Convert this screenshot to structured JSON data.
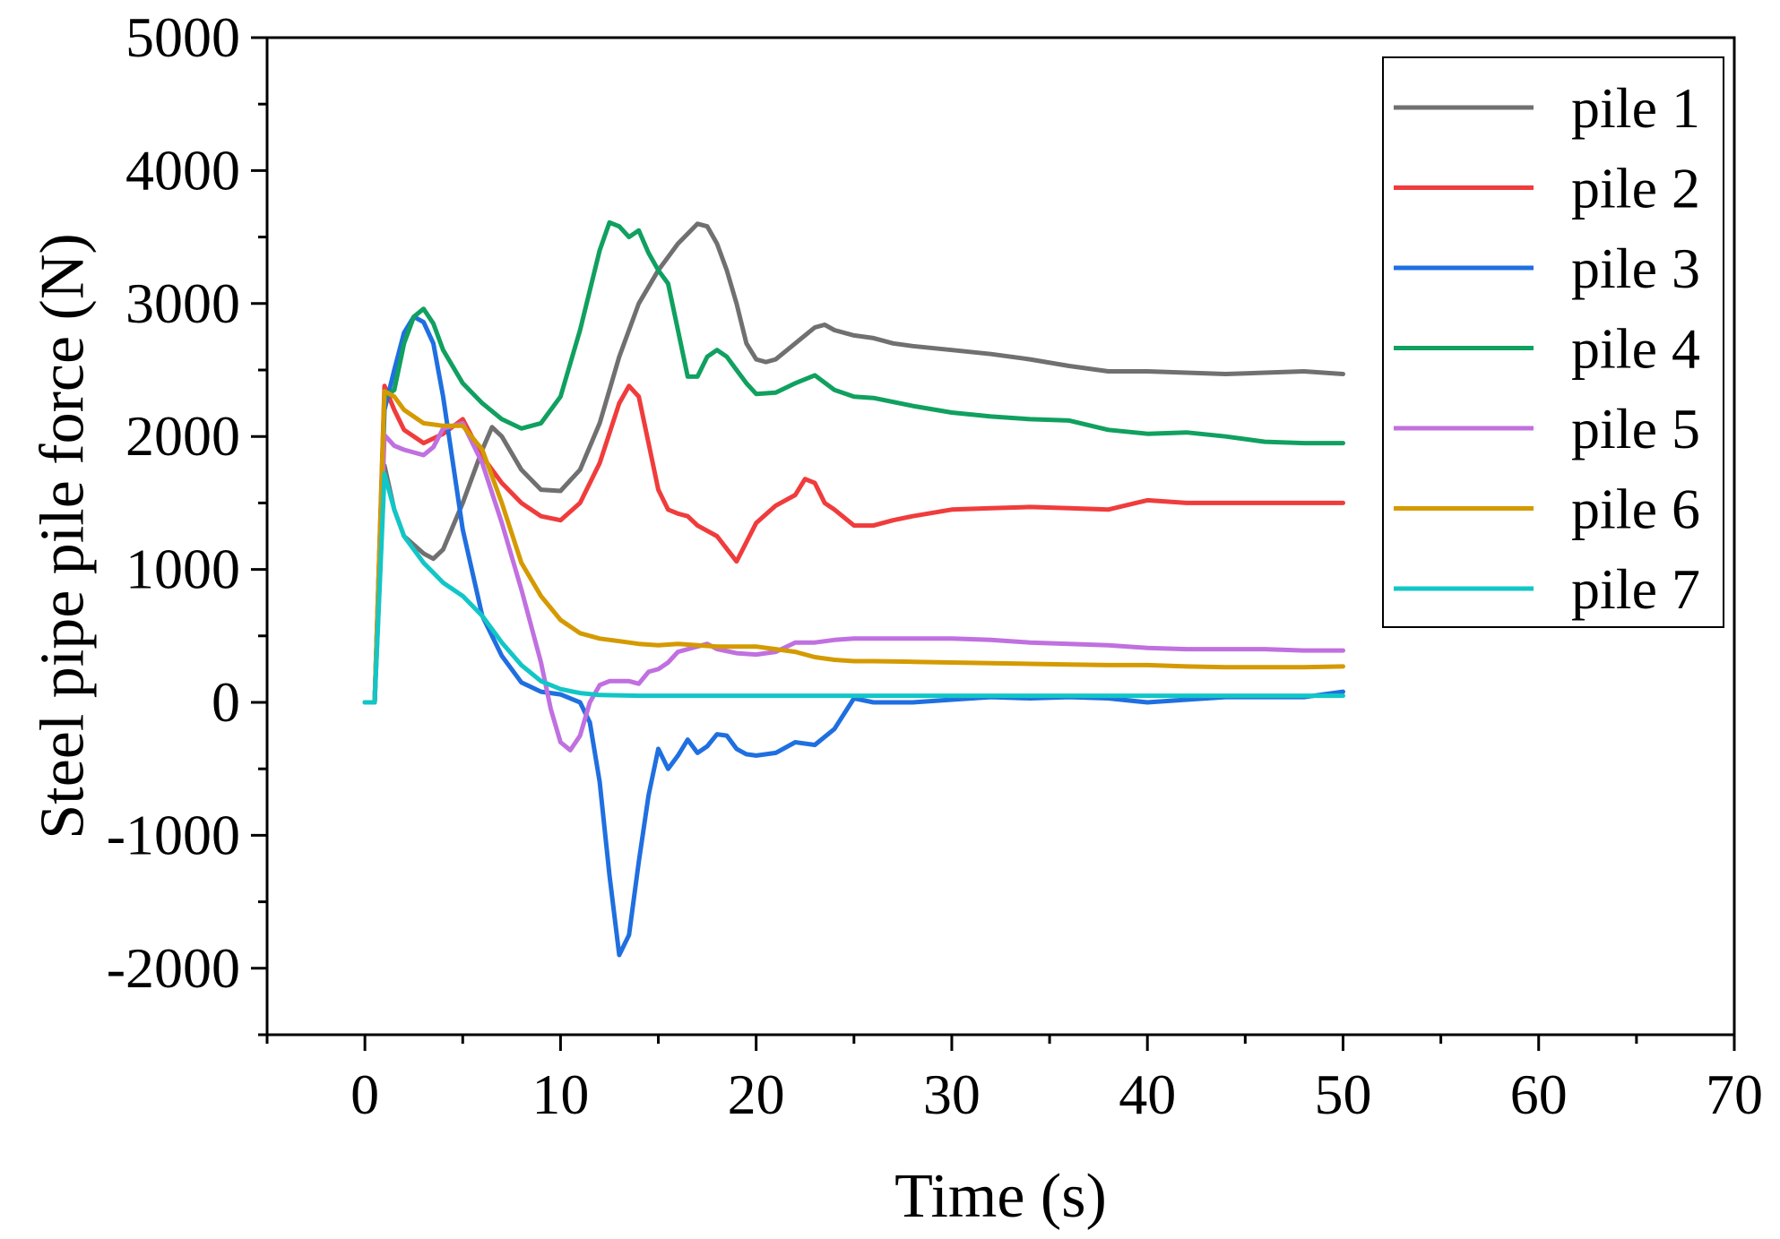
{
  "chart_data": {
    "type": "line",
    "title": "",
    "xlabel": "Time (s)",
    "ylabel": "Steel pipe pile force (N)",
    "xlim": [
      -5,
      70
    ],
    "ylim": [
      -2500,
      5000
    ],
    "xticks": [
      0,
      10,
      20,
      30,
      40,
      50,
      60,
      70
    ],
    "xtick_labels": [
      "0",
      "10",
      "20",
      "30",
      "40",
      "50",
      "60",
      "70"
    ],
    "yticks": [
      -2000,
      -1000,
      0,
      1000,
      2000,
      3000,
      4000,
      5000
    ],
    "ytick_labels": [
      "-2000",
      "-1000",
      "0",
      "1000",
      "2000",
      "3000",
      "4000",
      "5000"
    ],
    "grid": false,
    "legend_position": "top-right",
    "series": [
      {
        "name": "pile 1",
        "color": "#707070",
        "x": [
          0,
          0.5,
          1.0,
          1.5,
          2.0,
          3.0,
          3.5,
          4.0,
          5.0,
          6.0,
          6.5,
          7.0,
          8.0,
          9.0,
          10.0,
          11.0,
          12.0,
          13.0,
          14.0,
          15.0,
          16.0,
          17.0,
          17.5,
          18.0,
          18.5,
          19.0,
          19.5,
          20.0,
          20.5,
          21.0,
          22.0,
          23.0,
          23.5,
          24.0,
          25.0,
          26.0,
          27.0,
          28.0,
          30.0,
          32.0,
          34.0,
          36.0,
          38.0,
          40.0,
          42.0,
          44.0,
          46.0,
          48.0,
          50.0
        ],
        "y": [
          0,
          0,
          1780,
          1450,
          1250,
          1120,
          1080,
          1150,
          1500,
          1900,
          2070,
          2000,
          1750,
          1600,
          1590,
          1750,
          2100,
          2600,
          3000,
          3250,
          3450,
          3600,
          3580,
          3450,
          3250,
          3000,
          2700,
          2580,
          2560,
          2580,
          2700,
          2820,
          2840,
          2800,
          2760,
          2740,
          2700,
          2680,
          2650,
          2620,
          2580,
          2530,
          2490,
          2490,
          2480,
          2470,
          2480,
          2490,
          2470
        ]
      },
      {
        "name": "pile 2",
        "color": "#f03c3c",
        "x": [
          0,
          0.5,
          1.0,
          1.5,
          2.0,
          3.0,
          4.0,
          5.0,
          6.0,
          7.0,
          8.0,
          9.0,
          10.0,
          11.0,
          12.0,
          13.0,
          13.5,
          14.0,
          14.5,
          15.0,
          15.5,
          16.0,
          16.5,
          17.0,
          18.0,
          19.0,
          20.0,
          21.0,
          22.0,
          22.5,
          23.0,
          23.5,
          24.0,
          25.0,
          26.0,
          27.0,
          28.0,
          30.0,
          32.0,
          34.0,
          36.0,
          38.0,
          40.0,
          42.0,
          44.0,
          46.0,
          48.0,
          50.0
        ],
        "y": [
          0,
          0,
          2380,
          2200,
          2050,
          1950,
          2020,
          2130,
          1850,
          1650,
          1500,
          1400,
          1370,
          1500,
          1800,
          2250,
          2380,
          2300,
          1950,
          1600,
          1450,
          1420,
          1400,
          1330,
          1250,
          1060,
          1350,
          1480,
          1560,
          1680,
          1650,
          1500,
          1450,
          1330,
          1330,
          1370,
          1400,
          1450,
          1460,
          1470,
          1460,
          1450,
          1520,
          1500,
          1500,
          1500,
          1500,
          1500
        ]
      },
      {
        "name": "pile 3",
        "color": "#1f6fe0",
        "x": [
          0,
          0.5,
          1.0,
          1.5,
          2.0,
          2.5,
          3.0,
          3.5,
          4.0,
          5.0,
          6.0,
          7.0,
          8.0,
          9.0,
          10.0,
          11.0,
          11.5,
          12.0,
          12.5,
          13.0,
          13.5,
          14.0,
          14.5,
          15.0,
          15.5,
          16.0,
          16.5,
          17.0,
          17.5,
          18.0,
          18.5,
          19.0,
          19.5,
          20.0,
          21.0,
          22.0,
          23.0,
          24.0,
          25.0,
          26.0,
          28.0,
          30.0,
          32.0,
          34.0,
          36.0,
          38.0,
          40.0,
          42.0,
          44.0,
          46.0,
          48.0,
          50.0
        ],
        "y": [
          0,
          0,
          2200,
          2500,
          2780,
          2900,
          2860,
          2700,
          2300,
          1300,
          650,
          350,
          150,
          80,
          60,
          0,
          -150,
          -600,
          -1300,
          -1900,
          -1750,
          -1200,
          -700,
          -350,
          -500,
          -400,
          -280,
          -380,
          -330,
          -240,
          -250,
          -350,
          -390,
          -400,
          -380,
          -300,
          -320,
          -200,
          30,
          0,
          0,
          20,
          40,
          30,
          40,
          30,
          0,
          20,
          40,
          40,
          40,
          80
        ]
      },
      {
        "name": "pile 4",
        "color": "#10a060",
        "x": [
          0,
          0.5,
          1.0,
          1.5,
          2.0,
          2.5,
          3.0,
          3.5,
          4.0,
          5.0,
          6.0,
          7.0,
          8.0,
          9.0,
          10.0,
          11.0,
          12.0,
          12.5,
          13.0,
          13.5,
          14.0,
          14.5,
          15.0,
          15.5,
          16.0,
          16.5,
          17.0,
          17.5,
          18.0,
          18.5,
          19.0,
          19.5,
          20.0,
          21.0,
          22.0,
          23.0,
          24.0,
          25.0,
          26.0,
          28.0,
          30.0,
          32.0,
          34.0,
          36.0,
          38.0,
          40.0,
          42.0,
          44.0,
          46.0,
          48.0,
          50.0
        ],
        "y": [
          0,
          0,
          2300,
          2350,
          2700,
          2900,
          2960,
          2850,
          2650,
          2400,
          2250,
          2130,
          2060,
          2100,
          2300,
          2800,
          3400,
          3610,
          3580,
          3500,
          3550,
          3380,
          3250,
          3150,
          2800,
          2450,
          2450,
          2600,
          2650,
          2600,
          2500,
          2400,
          2320,
          2330,
          2400,
          2460,
          2350,
          2300,
          2290,
          2230,
          2180,
          2150,
          2130,
          2120,
          2050,
          2020,
          2030,
          2000,
          1960,
          1950,
          1950
        ]
      },
      {
        "name": "pile 5",
        "color": "#c070e0",
        "x": [
          0,
          0.5,
          1.0,
          1.5,
          2.0,
          2.5,
          3.0,
          3.5,
          4.0,
          5.0,
          6.0,
          7.0,
          8.0,
          9.0,
          9.5,
          10.0,
          10.5,
          11.0,
          11.5,
          12.0,
          12.5,
          13.0,
          13.5,
          14.0,
          14.5,
          15.0,
          15.5,
          16.0,
          16.5,
          17.0,
          17.5,
          18.0,
          19.0,
          20.0,
          21.0,
          22.0,
          23.0,
          24.0,
          25.0,
          26.0,
          28.0,
          30.0,
          32.0,
          34.0,
          36.0,
          38.0,
          40.0,
          42.0,
          44.0,
          46.0,
          48.0,
          50.0
        ],
        "y": [
          0,
          0,
          2010,
          1930,
          1900,
          1880,
          1860,
          1920,
          2060,
          2100,
          1800,
          1350,
          850,
          300,
          -50,
          -300,
          -360,
          -250,
          0,
          130,
          160,
          160,
          160,
          140,
          230,
          250,
          300,
          380,
          400,
          420,
          440,
          400,
          370,
          360,
          380,
          450,
          450,
          470,
          480,
          480,
          480,
          480,
          470,
          450,
          440,
          430,
          410,
          400,
          400,
          400,
          390,
          390
        ]
      },
      {
        "name": "pile 6",
        "color": "#d49a00",
        "x": [
          0,
          0.5,
          1.0,
          1.5,
          2.0,
          3.0,
          4.0,
          5.0,
          6.0,
          7.0,
          8.0,
          9.0,
          10.0,
          11.0,
          12.0,
          13.0,
          14.0,
          15.0,
          16.0,
          17.0,
          18.0,
          19.0,
          20.0,
          21.0,
          22.0,
          23.0,
          24.0,
          25.0,
          26.0,
          28.0,
          30.0,
          32.0,
          34.0,
          36.0,
          38.0,
          40.0,
          42.0,
          44.0,
          46.0,
          48.0,
          50.0
        ],
        "y": [
          0,
          0,
          2340,
          2300,
          2200,
          2100,
          2080,
          2080,
          1900,
          1500,
          1050,
          800,
          620,
          520,
          480,
          460,
          440,
          430,
          440,
          430,
          420,
          420,
          420,
          400,
          380,
          340,
          320,
          310,
          310,
          305,
          300,
          295,
          290,
          285,
          280,
          280,
          270,
          265,
          265,
          265,
          270
        ]
      },
      {
        "name": "pile 7",
        "color": "#12c6c6",
        "x": [
          0,
          0.5,
          1.0,
          1.5,
          2.0,
          3.0,
          4.0,
          5.0,
          6.0,
          7.0,
          8.0,
          9.0,
          10.0,
          11.0,
          12.0,
          14.0,
          16.0,
          18.0,
          20.0,
          25.0,
          30.0,
          35.0,
          40.0,
          45.0,
          50.0
        ],
        "y": [
          0,
          0,
          1720,
          1450,
          1250,
          1050,
          900,
          800,
          650,
          450,
          280,
          160,
          100,
          70,
          55,
          50,
          50,
          50,
          50,
          50,
          50,
          50,
          50,
          50,
          50
        ]
      }
    ]
  }
}
